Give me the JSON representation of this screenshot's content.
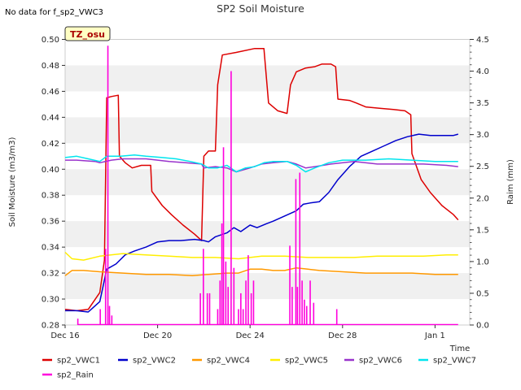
{
  "no_data_note": "No data for f_sp2_VWC3",
  "site_tag": "TZ_osu",
  "chart_data": {
    "type": "line",
    "title": "SP2 Soil Moisture",
    "xlabel": "Time",
    "ylabel": "Soil Moisture (m3/m3)",
    "y2label": "Raim (mm)",
    "xlim": [
      0,
      17.5
    ],
    "ylim": [
      0.28,
      0.5
    ],
    "y2lim": [
      0.0,
      4.5
    ],
    "x_unit": "days since Dec 16",
    "x_ticks": [
      {
        "v": 0,
        "label": "Dec 16"
      },
      {
        "v": 4,
        "label": "Dec 20"
      },
      {
        "v": 8,
        "label": "Dec 24"
      },
      {
        "v": 12,
        "label": "Dec 28"
      },
      {
        "v": 16,
        "label": "Jan 1"
      }
    ],
    "y_ticks": [
      {
        "v": 0.28,
        "label": "0.28"
      },
      {
        "v": 0.3,
        "label": "0.30"
      },
      {
        "v": 0.32,
        "label": "0.32"
      },
      {
        "v": 0.34,
        "label": "0.34"
      },
      {
        "v": 0.36,
        "label": "0.36"
      },
      {
        "v": 0.38,
        "label": "0.38"
      },
      {
        "v": 0.4,
        "label": "0.40"
      },
      {
        "v": 0.42,
        "label": "0.42"
      },
      {
        "v": 0.44,
        "label": "0.44"
      },
      {
        "v": 0.46,
        "label": "0.46"
      },
      {
        "v": 0.48,
        "label": "0.48"
      },
      {
        "v": 0.5,
        "label": "0.50"
      }
    ],
    "y2_ticks": [
      {
        "v": 0.0,
        "label": "0.0"
      },
      {
        "v": 0.5,
        "label": "0.5"
      },
      {
        "v": 1.0,
        "label": "1.0"
      },
      {
        "v": 1.5,
        "label": "1.5"
      },
      {
        "v": 2.0,
        "label": "2.0"
      },
      {
        "v": 2.5,
        "label": "2.5"
      },
      {
        "v": 3.0,
        "label": "3.0"
      },
      {
        "v": 3.5,
        "label": "3.5"
      },
      {
        "v": 4.0,
        "label": "4.0"
      },
      {
        "v": 4.5,
        "label": "4.5"
      }
    ],
    "series": [
      {
        "name": "sp2_VWC1",
        "color": "#dd0000",
        "axis": "left",
        "points": [
          [
            0,
            0.292
          ],
          [
            0.5,
            0.291
          ],
          [
            1,
            0.292
          ],
          [
            1.5,
            0.305
          ],
          [
            1.7,
            0.33
          ],
          [
            1.8,
            0.455
          ],
          [
            2.0,
            0.456
          ],
          [
            2.3,
            0.457
          ],
          [
            2.35,
            0.41
          ],
          [
            2.6,
            0.405
          ],
          [
            2.9,
            0.401
          ],
          [
            3.3,
            0.403
          ],
          [
            3.7,
            0.403
          ],
          [
            3.75,
            0.383
          ],
          [
            4.2,
            0.372
          ],
          [
            4.6,
            0.365
          ],
          [
            5.1,
            0.357
          ],
          [
            5.6,
            0.35
          ],
          [
            5.9,
            0.345
          ],
          [
            6.0,
            0.41
          ],
          [
            6.2,
            0.414
          ],
          [
            6.5,
            0.414
          ],
          [
            6.6,
            0.465
          ],
          [
            6.8,
            0.488
          ],
          [
            7.4,
            0.49
          ],
          [
            8.2,
            0.493
          ],
          [
            8.6,
            0.493
          ],
          [
            8.8,
            0.451
          ],
          [
            9.2,
            0.445
          ],
          [
            9.6,
            0.443
          ],
          [
            9.75,
            0.465
          ],
          [
            10.0,
            0.475
          ],
          [
            10.4,
            0.478
          ],
          [
            10.8,
            0.479
          ],
          [
            11.1,
            0.481
          ],
          [
            11.5,
            0.481
          ],
          [
            11.7,
            0.479
          ],
          [
            11.8,
            0.454
          ],
          [
            12.3,
            0.453
          ],
          [
            12.6,
            0.451
          ],
          [
            13.0,
            0.448
          ],
          [
            13.6,
            0.447
          ],
          [
            14.2,
            0.446
          ],
          [
            14.7,
            0.445
          ],
          [
            14.95,
            0.442
          ],
          [
            15.0,
            0.412
          ],
          [
            15.4,
            0.392
          ],
          [
            15.8,
            0.382
          ],
          [
            16.3,
            0.372
          ],
          [
            16.8,
            0.365
          ],
          [
            17.0,
            0.361
          ]
        ]
      },
      {
        "name": "sp2_VWC2",
        "color": "#0000cc",
        "axis": "left",
        "points": [
          [
            0,
            0.291
          ],
          [
            0.5,
            0.291
          ],
          [
            1,
            0.29
          ],
          [
            1.5,
            0.298
          ],
          [
            1.8,
            0.323
          ],
          [
            2.2,
            0.327
          ],
          [
            2.6,
            0.334
          ],
          [
            3.0,
            0.337
          ],
          [
            3.5,
            0.34
          ],
          [
            4.0,
            0.344
          ],
          [
            4.5,
            0.345
          ],
          [
            5.0,
            0.345
          ],
          [
            5.6,
            0.346
          ],
          [
            6.0,
            0.345
          ],
          [
            6.2,
            0.344
          ],
          [
            6.5,
            0.348
          ],
          [
            7.0,
            0.351
          ],
          [
            7.3,
            0.355
          ],
          [
            7.6,
            0.352
          ],
          [
            8.0,
            0.357
          ],
          [
            8.3,
            0.355
          ],
          [
            8.7,
            0.358
          ],
          [
            9.0,
            0.36
          ],
          [
            9.5,
            0.364
          ],
          [
            10.0,
            0.368
          ],
          [
            10.3,
            0.373
          ],
          [
            10.6,
            0.374
          ],
          [
            11.0,
            0.375
          ],
          [
            11.4,
            0.382
          ],
          [
            11.8,
            0.392
          ],
          [
            12.3,
            0.402
          ],
          [
            12.8,
            0.41
          ],
          [
            13.3,
            0.414
          ],
          [
            13.8,
            0.418
          ],
          [
            14.3,
            0.422
          ],
          [
            14.8,
            0.425
          ],
          [
            15.3,
            0.427
          ],
          [
            15.8,
            0.426
          ],
          [
            16.3,
            0.426
          ],
          [
            16.8,
            0.426
          ],
          [
            17.0,
            0.427
          ]
        ]
      },
      {
        "name": "sp2_VWC4",
        "color": "#ff9900",
        "axis": "left",
        "points": [
          [
            0,
            0.318
          ],
          [
            0.3,
            0.322
          ],
          [
            0.8,
            0.322
          ],
          [
            1.5,
            0.321
          ],
          [
            2.5,
            0.32
          ],
          [
            3.5,
            0.319
          ],
          [
            4.5,
            0.319
          ],
          [
            5.5,
            0.318
          ],
          [
            6.2,
            0.319
          ],
          [
            7.0,
            0.32
          ],
          [
            7.5,
            0.32
          ],
          [
            8.0,
            0.323
          ],
          [
            8.5,
            0.323
          ],
          [
            9.0,
            0.322
          ],
          [
            9.5,
            0.322
          ],
          [
            10.0,
            0.324
          ],
          [
            10.5,
            0.323
          ],
          [
            11.0,
            0.322
          ],
          [
            12.0,
            0.321
          ],
          [
            13.0,
            0.32
          ],
          [
            14.0,
            0.32
          ],
          [
            15.0,
            0.32
          ],
          [
            16.0,
            0.319
          ],
          [
            17.0,
            0.319
          ]
        ]
      },
      {
        "name": "sp2_VWC5",
        "color": "#ffee00",
        "axis": "left",
        "points": [
          [
            0,
            0.336
          ],
          [
            0.3,
            0.331
          ],
          [
            0.8,
            0.33
          ],
          [
            1.5,
            0.333
          ],
          [
            2.5,
            0.335
          ],
          [
            3.5,
            0.334
          ],
          [
            4.5,
            0.333
          ],
          [
            5.5,
            0.332
          ],
          [
            6.5,
            0.332
          ],
          [
            7.5,
            0.331
          ],
          [
            8.5,
            0.333
          ],
          [
            9.5,
            0.333
          ],
          [
            10.5,
            0.332
          ],
          [
            11.5,
            0.332
          ],
          [
            12.5,
            0.332
          ],
          [
            13.5,
            0.333
          ],
          [
            14.5,
            0.333
          ],
          [
            15.5,
            0.333
          ],
          [
            16.5,
            0.334
          ],
          [
            17.0,
            0.334
          ]
        ]
      },
      {
        "name": "sp2_VWC6",
        "color": "#9933cc",
        "axis": "left",
        "points": [
          [
            0,
            0.407
          ],
          [
            0.5,
            0.407
          ],
          [
            1.3,
            0.406
          ],
          [
            1.5,
            0.405
          ],
          [
            2.0,
            0.407
          ],
          [
            2.5,
            0.408
          ],
          [
            3.5,
            0.408
          ],
          [
            4.5,
            0.406
          ],
          [
            5.2,
            0.405
          ],
          [
            5.9,
            0.404
          ],
          [
            6.0,
            0.401
          ],
          [
            6.5,
            0.402
          ],
          [
            7.0,
            0.401
          ],
          [
            7.4,
            0.398
          ],
          [
            8.0,
            0.401
          ],
          [
            8.5,
            0.404
          ],
          [
            9.0,
            0.405
          ],
          [
            9.6,
            0.406
          ],
          [
            10.0,
            0.404
          ],
          [
            10.4,
            0.401
          ],
          [
            10.8,
            0.402
          ],
          [
            11.5,
            0.404
          ],
          [
            12.5,
            0.406
          ],
          [
            13.5,
            0.404
          ],
          [
            14.5,
            0.404
          ],
          [
            15.5,
            0.404
          ],
          [
            16.5,
            0.403
          ],
          [
            17.0,
            0.402
          ]
        ]
      },
      {
        "name": "sp2_VWC7",
        "color": "#00e5ee",
        "axis": "left",
        "points": [
          [
            0,
            0.409
          ],
          [
            0.5,
            0.41
          ],
          [
            1.0,
            0.408
          ],
          [
            1.5,
            0.406
          ],
          [
            1.8,
            0.41
          ],
          [
            2.4,
            0.41
          ],
          [
            3.0,
            0.411
          ],
          [
            3.5,
            0.41
          ],
          [
            4.2,
            0.409
          ],
          [
            4.8,
            0.408
          ],
          [
            5.4,
            0.406
          ],
          [
            5.9,
            0.404
          ],
          [
            6.2,
            0.401
          ],
          [
            6.6,
            0.401
          ],
          [
            7.0,
            0.403
          ],
          [
            7.4,
            0.398
          ],
          [
            7.8,
            0.401
          ],
          [
            8.2,
            0.402
          ],
          [
            8.6,
            0.405
          ],
          [
            9.0,
            0.406
          ],
          [
            9.6,
            0.406
          ],
          [
            10.0,
            0.403
          ],
          [
            10.4,
            0.398
          ],
          [
            10.8,
            0.401
          ],
          [
            11.4,
            0.405
          ],
          [
            12.0,
            0.407
          ],
          [
            13.0,
            0.407
          ],
          [
            14.0,
            0.408
          ],
          [
            15.0,
            0.407
          ],
          [
            16.0,
            0.406
          ],
          [
            17.0,
            0.406
          ]
        ]
      },
      {
        "name": "sp2_Rain",
        "color": "#ff00dd",
        "axis": "right",
        "type": "spikes",
        "points": [
          [
            0.55,
            0.1
          ],
          [
            1.52,
            0.25
          ],
          [
            1.75,
            1.2
          ],
          [
            1.85,
            4.4
          ],
          [
            1.92,
            0.3
          ],
          [
            2.02,
            0.15
          ],
          [
            5.85,
            0.5
          ],
          [
            5.98,
            1.2
          ],
          [
            6.15,
            0.5
          ],
          [
            6.25,
            0.5
          ],
          [
            6.6,
            0.25
          ],
          [
            6.7,
            0.7
          ],
          [
            6.78,
            1.6
          ],
          [
            6.85,
            2.8
          ],
          [
            6.95,
            1.0
          ],
          [
            7.05,
            0.6
          ],
          [
            7.18,
            4.0
          ],
          [
            7.3,
            0.9
          ],
          [
            7.5,
            0.25
          ],
          [
            7.6,
            0.5
          ],
          [
            7.7,
            0.25
          ],
          [
            7.82,
            0.7
          ],
          [
            7.92,
            1.1
          ],
          [
            8.05,
            0.5
          ],
          [
            8.15,
            0.7
          ],
          [
            9.72,
            1.25
          ],
          [
            9.82,
            0.6
          ],
          [
            9.98,
            2.3
          ],
          [
            10.05,
            0.6
          ],
          [
            10.15,
            2.4
          ],
          [
            10.25,
            0.7
          ],
          [
            10.35,
            0.4
          ],
          [
            10.45,
            0.3
          ],
          [
            10.6,
            0.7
          ],
          [
            10.75,
            0.35
          ],
          [
            11.75,
            0.25
          ]
        ]
      }
    ]
  }
}
